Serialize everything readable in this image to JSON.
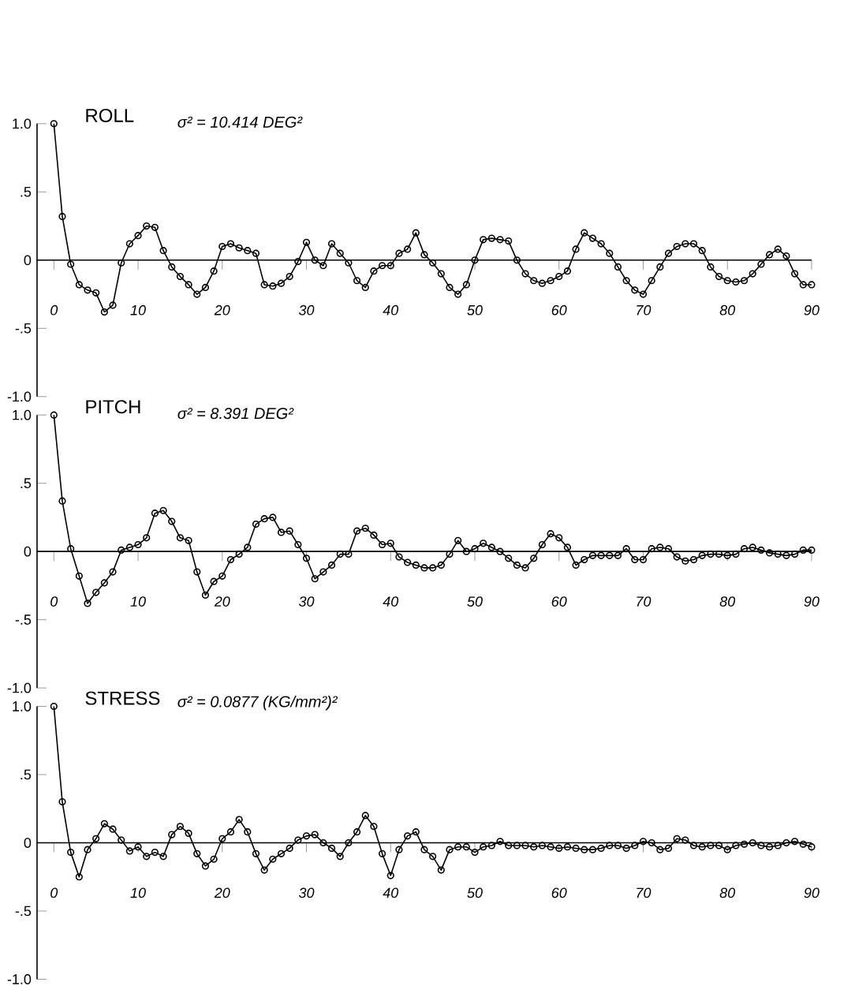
{
  "chart_data": [
    {
      "type": "line",
      "title": "ROLL",
      "subtitle": "σ² = 10.414 DEG²",
      "color": "#000000",
      "marker": "circle",
      "line_style": "solid",
      "xlim": [
        -2,
        90
      ],
      "ylim": [
        -1,
        1
      ],
      "xticks": [
        0,
        10,
        20,
        30,
        40,
        50,
        60,
        70,
        80,
        90
      ],
      "yticks": [
        {
          "value": 1,
          "label": "1.0"
        },
        {
          "value": 0.5,
          "label": ".5"
        },
        0,
        {
          "value": -0.5,
          "label": "-.5"
        },
        {
          "value": -1,
          "label": "-1.0"
        }
      ],
      "x": [
        0,
        1,
        2,
        3,
        4,
        5,
        6,
        7,
        8,
        9,
        10,
        11,
        12,
        13,
        14,
        15,
        16,
        17,
        18,
        19,
        20,
        21,
        22,
        23,
        24,
        25,
        26,
        27,
        28,
        29,
        30,
        31,
        32,
        33,
        34,
        35,
        36,
        37,
        38,
        39,
        40,
        41,
        42,
        43,
        44,
        45,
        46,
        47,
        48,
        49,
        50,
        51,
        52,
        53,
        54,
        55,
        56,
        57,
        58,
        59,
        60,
        61,
        62,
        63,
        64,
        65,
        66,
        67,
        68,
        69,
        70,
        71,
        72,
        73,
        74,
        75,
        76,
        77,
        78,
        79,
        80,
        81,
        82,
        83,
        84,
        85,
        86,
        87,
        88,
        89,
        90
      ],
      "values": [
        1.0,
        0.32,
        -0.03,
        -0.18,
        -0.22,
        -0.24,
        -0.38,
        -0.33,
        -0.02,
        0.12,
        0.18,
        0.25,
        0.24,
        0.07,
        -0.05,
        -0.12,
        -0.18,
        -0.25,
        -0.2,
        -0.08,
        0.1,
        0.12,
        0.09,
        0.07,
        0.05,
        -0.18,
        -0.19,
        -0.17,
        -0.12,
        -0.01,
        0.13,
        0.0,
        -0.04,
        0.12,
        0.05,
        -0.02,
        -0.15,
        -0.2,
        -0.08,
        -0.04,
        -0.04,
        0.05,
        0.08,
        0.2,
        0.04,
        -0.02,
        -0.1,
        -0.2,
        -0.25,
        -0.18,
        0.0,
        0.15,
        0.16,
        0.15,
        0.14,
        0.0,
        -0.1,
        -0.15,
        -0.17,
        -0.15,
        -0.12,
        -0.08,
        0.08,
        0.2,
        0.16,
        0.12,
        0.05,
        -0.05,
        -0.15,
        -0.22,
        -0.25,
        -0.15,
        -0.05,
        0.05,
        0.1,
        0.12,
        0.12,
        0.07,
        -0.05,
        -0.12,
        -0.15,
        -0.16,
        -0.15,
        -0.1,
        -0.03,
        0.04,
        0.08,
        0.03,
        -0.1,
        -0.18,
        -0.18
      ]
    },
    {
      "type": "line",
      "title": "PITCH",
      "subtitle": "σ² = 8.391 DEG²",
      "color": "#000000",
      "marker": "circle",
      "line_style": "solid",
      "xlim": [
        -2,
        90
      ],
      "ylim": [
        -1,
        1
      ],
      "xticks": [
        0,
        10,
        20,
        30,
        40,
        50,
        60,
        70,
        80,
        90
      ],
      "yticks": [
        {
          "value": 1,
          "label": "1.0"
        },
        {
          "value": 0.5,
          "label": ".5"
        },
        0,
        {
          "value": -0.5,
          "label": "-.5"
        },
        {
          "value": -1,
          "label": "-1.0"
        }
      ],
      "x": [
        0,
        1,
        2,
        3,
        4,
        5,
        6,
        7,
        8,
        9,
        10,
        11,
        12,
        13,
        14,
        15,
        16,
        17,
        18,
        19,
        20,
        21,
        22,
        23,
        24,
        25,
        26,
        27,
        28,
        29,
        30,
        31,
        32,
        33,
        34,
        35,
        36,
        37,
        38,
        39,
        40,
        41,
        42,
        43,
        44,
        45,
        46,
        47,
        48,
        49,
        50,
        51,
        52,
        53,
        54,
        55,
        56,
        57,
        58,
        59,
        60,
        61,
        62,
        63,
        64,
        65,
        66,
        67,
        68,
        69,
        70,
        71,
        72,
        73,
        74,
        75,
        76,
        77,
        78,
        79,
        80,
        81,
        82,
        83,
        84,
        85,
        86,
        87,
        88,
        89,
        90
      ],
      "values": [
        1.0,
        0.37,
        0.02,
        -0.18,
        -0.38,
        -0.3,
        -0.23,
        -0.15,
        0.01,
        0.03,
        0.05,
        0.1,
        0.28,
        0.3,
        0.22,
        0.1,
        0.08,
        -0.15,
        -0.32,
        -0.22,
        -0.18,
        -0.06,
        -0.02,
        0.03,
        0.2,
        0.24,
        0.25,
        0.14,
        0.15,
        0.05,
        -0.05,
        -0.2,
        -0.15,
        -0.1,
        -0.02,
        -0.02,
        0.15,
        0.17,
        0.12,
        0.05,
        0.06,
        -0.04,
        -0.08,
        -0.1,
        -0.12,
        -0.12,
        -0.1,
        -0.02,
        0.08,
        0.0,
        0.02,
        0.06,
        0.03,
        0.0,
        -0.05,
        -0.1,
        -0.12,
        -0.05,
        0.05,
        0.13,
        0.1,
        0.03,
        -0.1,
        -0.06,
        -0.03,
        -0.03,
        -0.03,
        -0.03,
        0.02,
        -0.06,
        -0.06,
        0.02,
        0.03,
        0.02,
        -0.04,
        -0.07,
        -0.06,
        -0.03,
        -0.02,
        -0.02,
        -0.03,
        -0.02,
        0.02,
        0.03,
        0.01,
        -0.01,
        -0.02,
        -0.03,
        -0.02,
        0.01,
        0.01
      ]
    },
    {
      "type": "line",
      "title": "STRESS",
      "subtitle": "σ² = 0.0877 (KG/mm²)²",
      "color": "#000000",
      "marker": "circle",
      "line_style": "solid",
      "xlim": [
        -2,
        90
      ],
      "ylim": [
        -1,
        1
      ],
      "xticks": [
        0,
        10,
        20,
        30,
        40,
        50,
        60,
        70,
        80,
        90
      ],
      "yticks": [
        {
          "value": 1,
          "label": "1.0"
        },
        {
          "value": 0.5,
          "label": ".5"
        },
        0,
        {
          "value": -0.5,
          "label": "-.5"
        },
        {
          "value": -1,
          "label": "-1.0"
        }
      ],
      "x": [
        0,
        1,
        2,
        3,
        4,
        5,
        6,
        7,
        8,
        9,
        10,
        11,
        12,
        13,
        14,
        15,
        16,
        17,
        18,
        19,
        20,
        21,
        22,
        23,
        24,
        25,
        26,
        27,
        28,
        29,
        30,
        31,
        32,
        33,
        34,
        35,
        36,
        37,
        38,
        39,
        40,
        41,
        42,
        43,
        44,
        45,
        46,
        47,
        48,
        49,
        50,
        51,
        52,
        53,
        54,
        55,
        56,
        57,
        58,
        59,
        60,
        61,
        62,
        63,
        64,
        65,
        66,
        67,
        68,
        69,
        70,
        71,
        72,
        73,
        74,
        75,
        76,
        77,
        78,
        79,
        80,
        81,
        82,
        83,
        84,
        85,
        86,
        87,
        88,
        89,
        90
      ],
      "values": [
        1.0,
        0.3,
        -0.07,
        -0.25,
        -0.05,
        0.03,
        0.14,
        0.1,
        0.02,
        -0.06,
        -0.03,
        -0.1,
        -0.07,
        -0.1,
        0.06,
        0.12,
        0.07,
        -0.08,
        -0.17,
        -0.12,
        0.03,
        0.08,
        0.17,
        0.08,
        -0.08,
        -0.2,
        -0.12,
        -0.08,
        -0.04,
        0.02,
        0.05,
        0.06,
        0.0,
        -0.04,
        -0.1,
        0.0,
        0.08,
        0.2,
        0.12,
        -0.08,
        -0.24,
        -0.05,
        0.05,
        0.08,
        -0.05,
        -0.1,
        -0.2,
        -0.05,
        -0.03,
        -0.03,
        -0.07,
        -0.03,
        -0.02,
        0.01,
        -0.02,
        -0.02,
        -0.02,
        -0.03,
        -0.02,
        -0.03,
        -0.04,
        -0.03,
        -0.04,
        -0.05,
        -0.05,
        -0.04,
        -0.02,
        -0.02,
        -0.04,
        -0.02,
        0.01,
        0.0,
        -0.05,
        -0.04,
        0.03,
        0.02,
        -0.02,
        -0.03,
        -0.02,
        -0.02,
        -0.05,
        -0.02,
        -0.01,
        0.0,
        -0.02,
        -0.03,
        -0.02,
        0.0,
        0.01,
        -0.01,
        -0.03
      ]
    }
  ]
}
